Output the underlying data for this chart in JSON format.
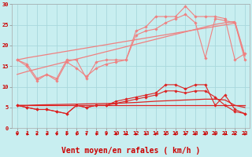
{
  "background_color": "#c8eef0",
  "grid_color": "#a8d8dc",
  "x_values": [
    0,
    1,
    2,
    3,
    4,
    5,
    6,
    7,
    8,
    9,
    10,
    11,
    12,
    13,
    14,
    15,
    16,
    17,
    18,
    19,
    20,
    21,
    22,
    23
  ],
  "series": [
    {
      "name": "light_jagged1",
      "color": "#f08080",
      "linewidth": 0.8,
      "marker": "D",
      "markersize": 1.8,
      "y": [
        16.5,
        15.5,
        12.0,
        13.0,
        12.0,
        16.5,
        16.5,
        12.0,
        16.0,
        16.5,
        16.5,
        16.5,
        23.5,
        24.5,
        27.0,
        27.0,
        27.0,
        29.5,
        27.0,
        27.0,
        27.0,
        26.5,
        16.5,
        18.0
      ]
    },
    {
      "name": "light_jagged2",
      "color": "#f08080",
      "linewidth": 0.8,
      "marker": "D",
      "markersize": 1.8,
      "y": [
        16.5,
        15.0,
        11.5,
        13.0,
        11.5,
        16.0,
        14.5,
        12.5,
        14.5,
        15.5,
        16.0,
        16.5,
        22.5,
        23.5,
        24.0,
        25.5,
        26.5,
        27.5,
        25.5,
        17.0,
        26.5,
        26.0,
        25.5,
        16.5
      ]
    },
    {
      "name": "light_trend_low",
      "color": "#f08080",
      "linewidth": 0.9,
      "marker": null,
      "y": [
        13.0,
        13.7,
        14.3,
        14.9,
        15.5,
        16.1,
        16.7,
        17.3,
        17.9,
        18.5,
        19.1,
        19.7,
        20.3,
        20.9,
        21.5,
        22.1,
        22.7,
        23.3,
        23.9,
        24.5,
        25.1,
        25.5,
        25.8,
        17.5
      ]
    },
    {
      "name": "light_trend_high",
      "color": "#f08080",
      "linewidth": 0.9,
      "marker": null,
      "y": [
        16.5,
        17.0,
        17.4,
        17.8,
        18.2,
        18.6,
        19.0,
        19.4,
        19.8,
        20.2,
        20.6,
        21.0,
        21.4,
        21.8,
        22.2,
        22.6,
        23.0,
        23.4,
        23.8,
        24.2,
        24.6,
        25.0,
        25.4,
        17.5
      ]
    },
    {
      "name": "dark_jagged1",
      "color": "#dd2222",
      "linewidth": 0.8,
      "marker": "D",
      "markersize": 1.8,
      "y": [
        5.5,
        5.0,
        4.5,
        4.5,
        4.0,
        3.5,
        5.5,
        5.0,
        5.5,
        5.5,
        6.5,
        7.0,
        7.5,
        8.0,
        8.5,
        10.5,
        10.5,
        9.5,
        10.5,
        10.5,
        5.5,
        8.0,
        4.5,
        3.5
      ]
    },
    {
      "name": "dark_jagged2",
      "color": "#dd2222",
      "linewidth": 0.8,
      "marker": "D",
      "markersize": 1.8,
      "y": [
        5.5,
        5.0,
        4.5,
        4.5,
        4.0,
        3.5,
        5.5,
        5.0,
        5.5,
        5.5,
        6.0,
        6.5,
        7.0,
        7.5,
        8.0,
        9.0,
        9.0,
        8.5,
        9.0,
        9.0,
        7.5,
        5.5,
        4.0,
        3.5
      ]
    },
    {
      "name": "dark_trend_flat",
      "color": "#dd2222",
      "linewidth": 0.9,
      "marker": null,
      "y": [
        5.5,
        5.5,
        5.5,
        5.5,
        5.5,
        5.5,
        5.5,
        5.5,
        5.5,
        5.5,
        5.5,
        5.5,
        5.5,
        5.5,
        5.5,
        5.5,
        5.5,
        5.5,
        5.5,
        5.5,
        5.5,
        5.5,
        5.5,
        5.5
      ]
    },
    {
      "name": "dark_trend_rise",
      "color": "#dd2222",
      "linewidth": 0.9,
      "marker": null,
      "y": [
        5.5,
        5.5,
        5.6,
        5.65,
        5.7,
        5.75,
        5.8,
        5.85,
        5.9,
        5.95,
        6.0,
        6.1,
        6.2,
        6.35,
        6.5,
        6.6,
        6.7,
        6.8,
        6.9,
        7.0,
        7.0,
        6.8,
        5.5,
        5.0
      ]
    }
  ],
  "xlabel": "Vent moyen/en rafales ( km/h )",
  "xlim_left": -0.5,
  "xlim_right": 23.5,
  "ylim": [
    0,
    30
  ],
  "yticks": [
    0,
    5,
    10,
    15,
    20,
    25,
    30
  ],
  "xticks": [
    0,
    1,
    2,
    3,
    4,
    5,
    6,
    7,
    8,
    9,
    10,
    11,
    12,
    13,
    14,
    15,
    16,
    17,
    18,
    19,
    20,
    21,
    22,
    23
  ],
  "tick_color": "#cc0000",
  "label_color": "#cc0000",
  "tick_fontsize": 5.0,
  "xlabel_fontsize": 7.0,
  "figsize": [
    3.2,
    2.0
  ],
  "dpi": 100
}
